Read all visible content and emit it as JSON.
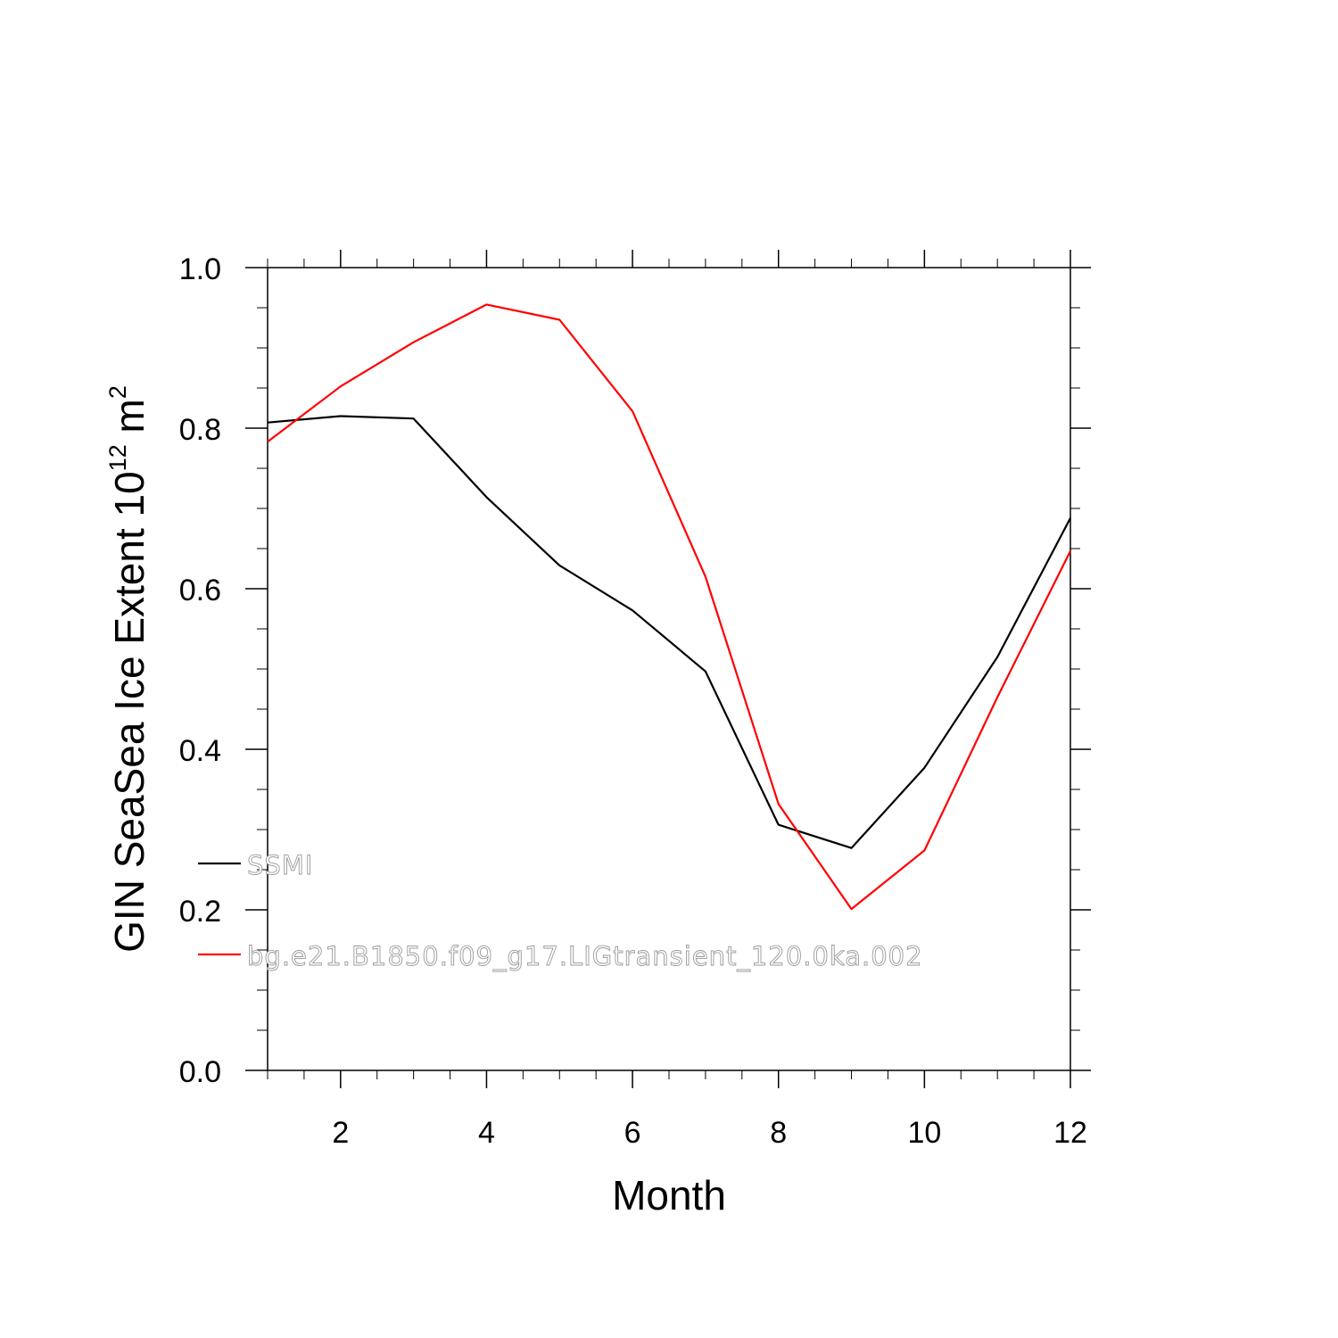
{
  "chart_data": {
    "type": "line",
    "xlabel": "Month",
    "ylabel": {
      "text": "GIN SeaSea Ice Extent 10",
      "exp": "12",
      "unit": " m",
      "unit_exp": "2"
    },
    "xlim": [
      1,
      12
    ],
    "ylim": [
      0.0,
      1.0
    ],
    "xticks": [
      2,
      4,
      6,
      8,
      10,
      12
    ],
    "xtick_labels": [
      "2",
      "4",
      "6",
      "8",
      "10",
      "12"
    ],
    "yticks": [
      0.0,
      0.2,
      0.4,
      0.6,
      0.8,
      1.0
    ],
    "ytick_labels": [
      "0.0",
      "0.2",
      "0.4",
      "0.6",
      "0.8",
      "1.0"
    ],
    "grid": false,
    "legend_position": "lower-left",
    "x": [
      1,
      2,
      3,
      4,
      5,
      6,
      7,
      8,
      9,
      10,
      11,
      12
    ],
    "series": [
      {
        "name": "SSMI",
        "color": "#000000",
        "values": [
          0.807,
          0.815,
          0.812,
          0.714,
          0.629,
          0.573,
          0.497,
          0.306,
          0.277,
          0.377,
          0.515,
          0.688
        ]
      },
      {
        "name": "bg.e21.B1850.f09_g17.LIGtransient_120.0ka.002",
        "color": "#ff0000",
        "values": [
          0.783,
          0.852,
          0.907,
          0.954,
          0.935,
          0.821,
          0.615,
          0.332,
          0.201,
          0.274,
          0.465,
          0.647
        ]
      }
    ]
  }
}
